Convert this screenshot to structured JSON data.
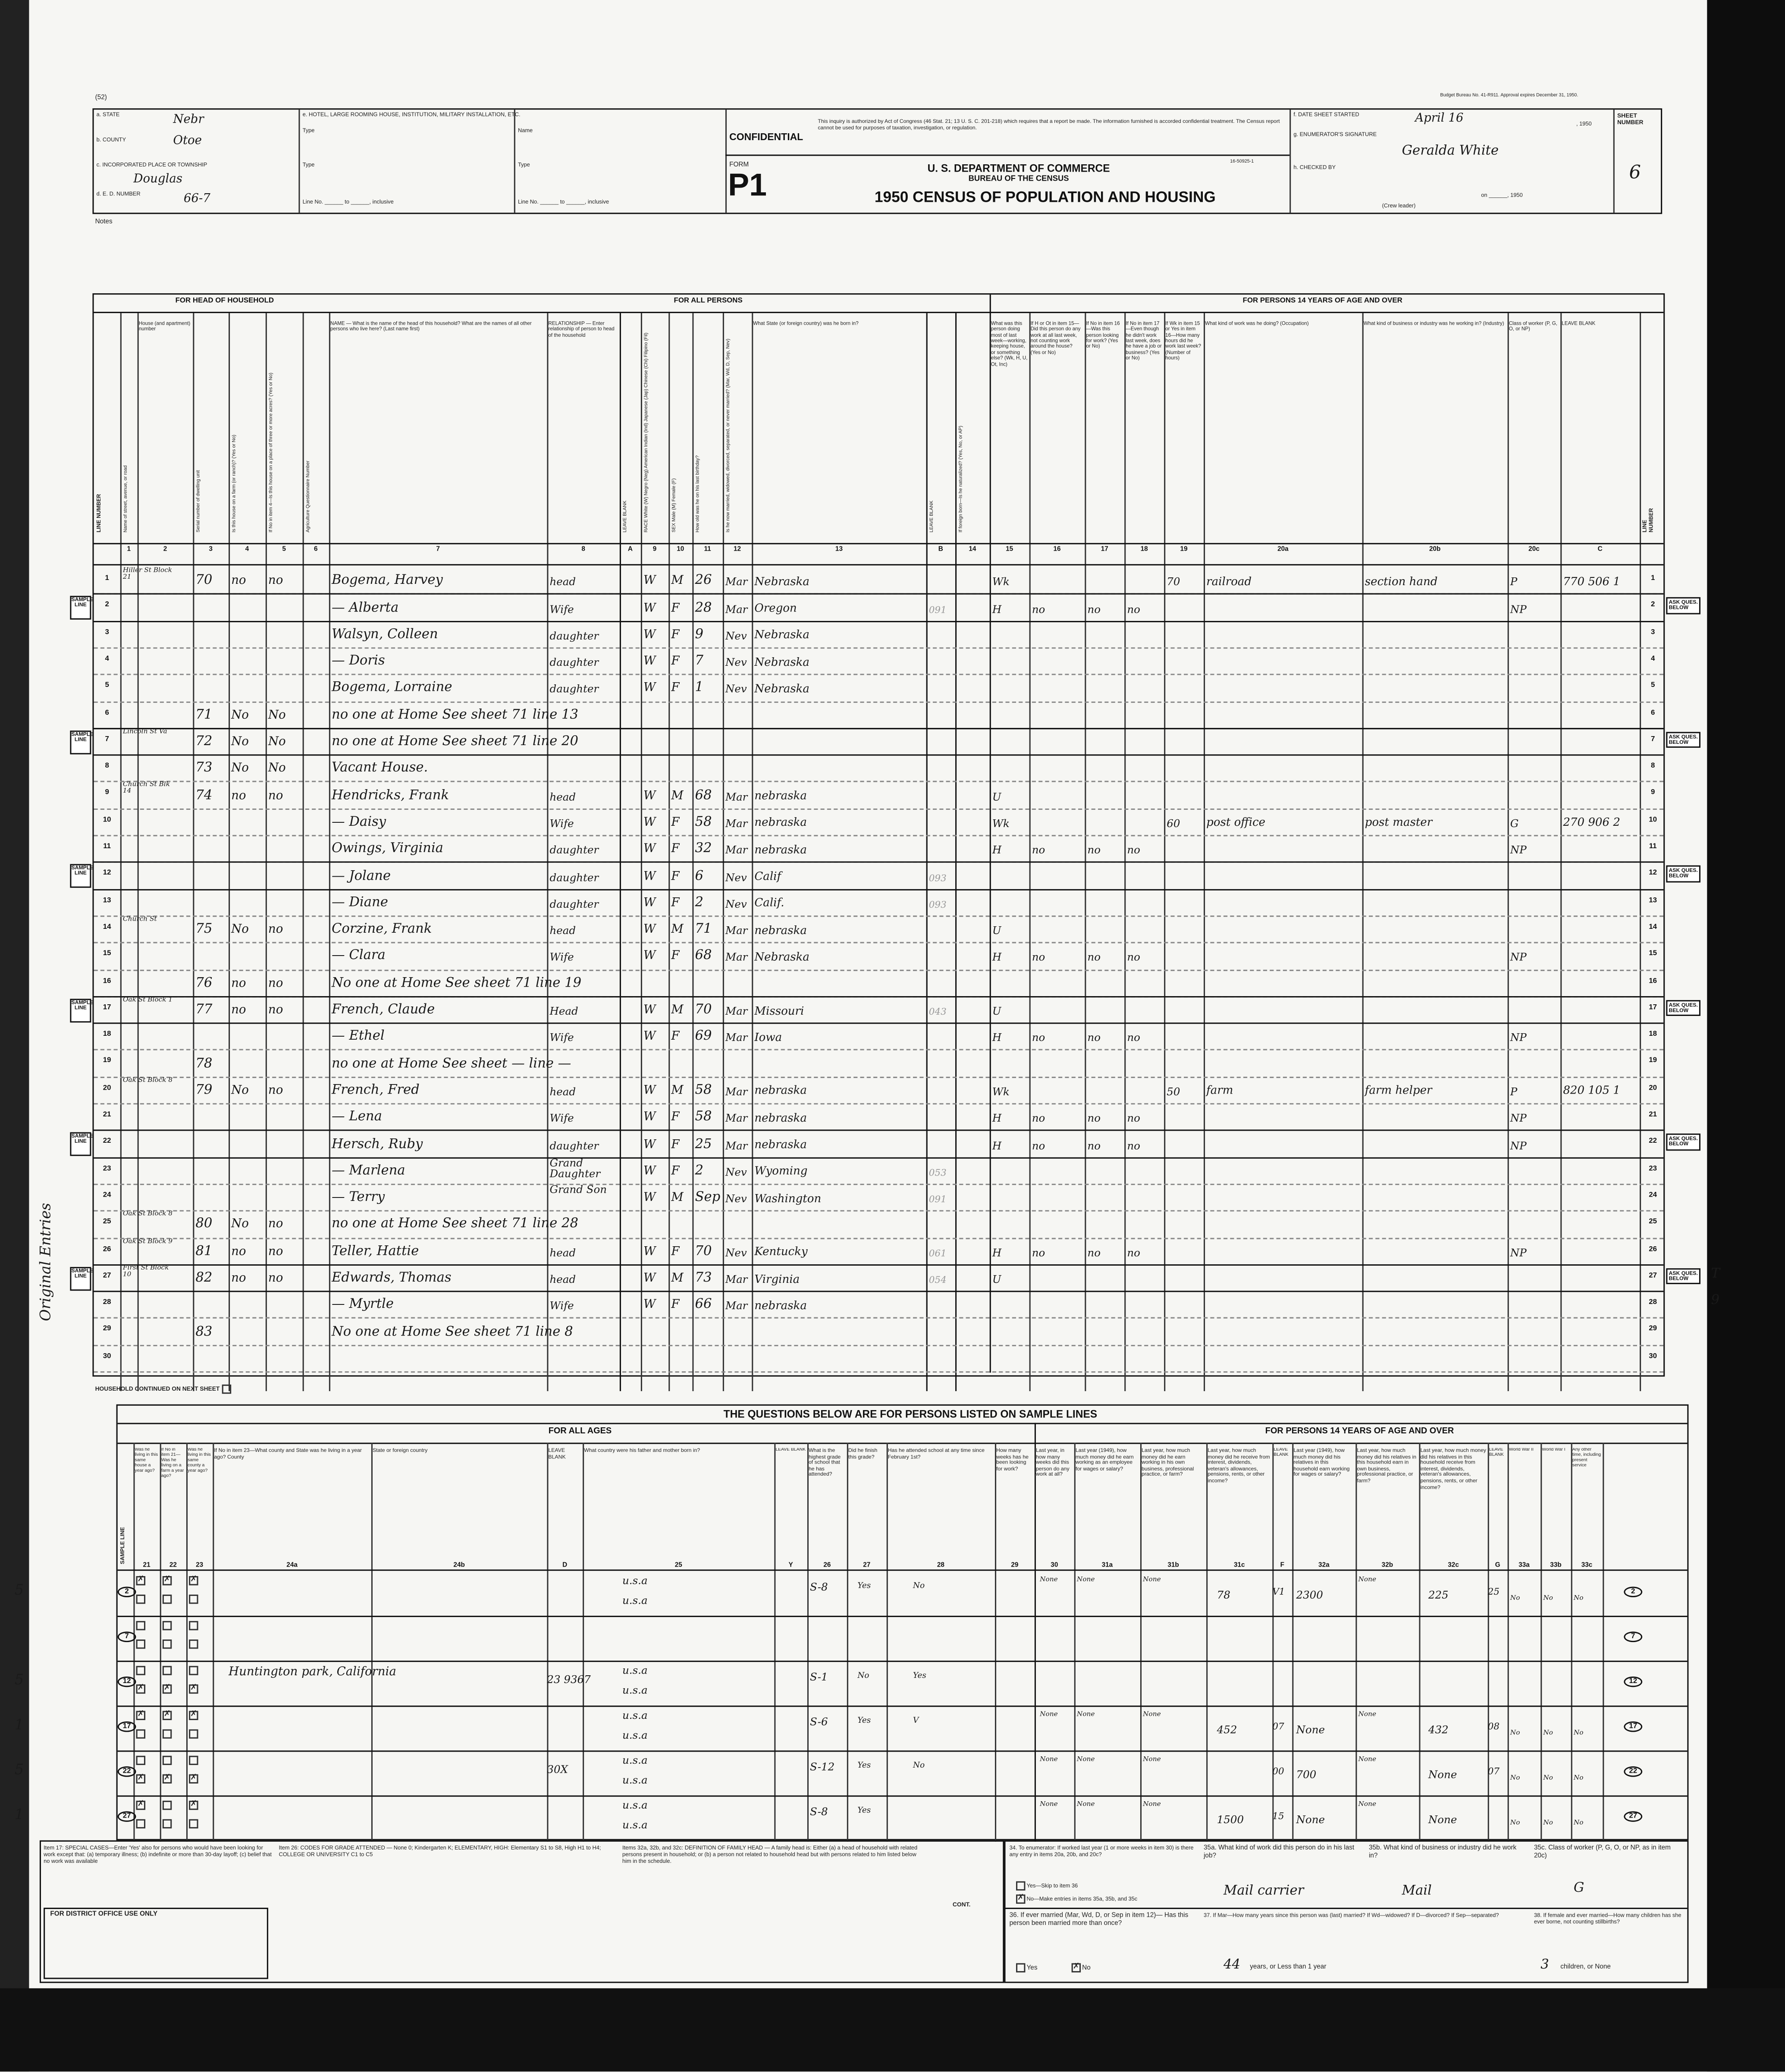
{
  "page_mark": "(52)",
  "budget_note": "Budget Bureau No. 41-R911. Approval expires December 31, 1950.",
  "header": {
    "state_label": "a. STATE",
    "state": "Nebr",
    "county_label": "b. COUNTY",
    "county": "Otoe",
    "place_label": "c. INCORPORATED PLACE OR TOWNSHIP",
    "place": "Douglas",
    "ed_label": "d. E. D. NUMBER",
    "ed": "66-7",
    "hotel_label": "e. HOTEL, LARGE ROOMING HOUSE, INSTITUTION, MILITARY INSTALLATION, ETC.",
    "type_label": "Type",
    "name_label": "Name",
    "line_no_label": "Line No. ______ to ______, inclusive",
    "confidential": "CONFIDENTIAL",
    "confidential_text": "This inquiry is authorized by Act of Congress (46 Stat. 21; 13 U. S. C. 201-218) which requires that a report be made. The information furnished is accorded confidential treatment. The Census report cannot be used for purposes of taxation, investigation, or regulation.",
    "form_label": "FORM",
    "form_no": "P1",
    "form_code": "16-50925-1",
    "dept": "U. S. DEPARTMENT OF COMMERCE",
    "bureau": "BUREAU OF THE CENSUS",
    "title": "1950 CENSUS OF POPULATION AND HOUSING",
    "date_label": "f. DATE SHEET STARTED",
    "date": "April 16",
    "date_year": ", 1950",
    "enumerator_label": "g. ENUMERATOR'S SIGNATURE",
    "enumerator": "Geralda White",
    "checked_label": "h. CHECKED BY",
    "checked_on": "on ______, 1950",
    "crew_leader": "(Crew leader)",
    "sheet_label": "SHEET NUMBER",
    "sheet": "6",
    "notes_label": "Notes"
  },
  "groups": {
    "head": "FOR HEAD OF HOUSEHOLD",
    "all": "FOR ALL PERSONS",
    "over14": "FOR PERSONS 14 YEARS OF AGE AND OVER",
    "line_number": "LINE NUMBER",
    "leave_blank": "LEAVE BLANK"
  },
  "columns": [
    {
      "num": "1",
      "text": "Name of street, avenue, or road"
    },
    {
      "num": "2",
      "text": "House (and apartment) number"
    },
    {
      "num": "3",
      "text": "Serial number of dwelling unit"
    },
    {
      "num": "4",
      "text": "Is this house on a farm (or ranch)? (Yes or No)"
    },
    {
      "num": "5",
      "text": "If No in item 4—Is this house on a place of three or more acres? (Yes or No)"
    },
    {
      "num": "6",
      "text": "Agriculture Questionnaire Number"
    },
    {
      "num": "7",
      "text": "NAME — What is the name of the head of this household? What are the names of all other persons who live here? (Last name first)"
    },
    {
      "num": "8",
      "text": "RELATIONSHIP — Enter relationship of person to head of the household"
    },
    {
      "num": "A",
      "text": "LEAVE BLANK"
    },
    {
      "num": "9",
      "text": "RACE White (W) Negro (Neg) American Indian (Ind) Japanese (Jap) Chinese (Chi) Filipino (Fil)"
    },
    {
      "num": "10",
      "text": "SEX Male (M) Female (F)"
    },
    {
      "num": "11",
      "text": "How old was he on his last birthday?"
    },
    {
      "num": "12",
      "text": "Is he now married, widowed, divorced, separated, or never married? (Mar, Wd, D, Sep, Nev)"
    },
    {
      "num": "13",
      "text": "What State (or foreign country) was he born in?"
    },
    {
      "num": "B",
      "text": "LEAVE BLANK"
    },
    {
      "num": "14",
      "text": "If foreign born—Is he naturalized? (Yes, No, or AP)"
    },
    {
      "num": "15",
      "text": "What was this person doing most of last week—working, keeping house, or something else? (Wk, H, U, Ot, Inc)"
    },
    {
      "num": "16",
      "text": "If H or Ot in item 15—Did this person do any work at all last week, not counting work around the house? (Yes or No)"
    },
    {
      "num": "17",
      "text": "If No in item 16—Was this person looking for work? (Yes or No)"
    },
    {
      "num": "18",
      "text": "If No in item 17—Even though he didn't work last week, does he have a job or business? (Yes or No)"
    },
    {
      "num": "19",
      "text": "If Wk in item 15 or Yes in item 16—How many hours did he work last week? (Number of hours)"
    },
    {
      "num": "20a",
      "text": "What kind of work was he doing? (Occupation)"
    },
    {
      "num": "20b",
      "text": "What kind of business or industry was he working in? (Industry)"
    },
    {
      "num": "20c",
      "text": "Class of worker (P, G, O, or NP)"
    },
    {
      "num": "C",
      "text": "LEAVE BLANK"
    }
  ],
  "rows": [
    {
      "ln": "1",
      "c1": "Hiller St Block 21",
      "c3": "70",
      "c4": "no",
      "c5": "no",
      "c7": "Bogema, Harvey",
      "c8": "head",
      "c9": "W",
      "c10": "M",
      "c11": "26",
      "c12": "Mar",
      "c13": "Nebraska",
      "c15": "Wk",
      "c19": "70",
      "c20a": "railroad",
      "c20b": "section hand",
      "c20c": "P",
      "cc": "770 506 1"
    },
    {
      "ln": "2",
      "sample": true,
      "c7": "— Alberta",
      "c8": "Wife",
      "c9": "W",
      "c10": "F",
      "c11": "28",
      "c12": "Mar",
      "c13": "Oregon",
      "cb": "091",
      "c15": "H",
      "c16": "no",
      "c17": "no",
      "c18": "no",
      "c20c": "NP"
    },
    {
      "ln": "3",
      "c7": "Walsyn, Colleen",
      "c8": "daughter",
      "c9": "W",
      "c10": "F",
      "c11": "9",
      "c12": "Nev",
      "c13": "Nebraska"
    },
    {
      "ln": "4",
      "c7": "— Doris",
      "c8": "daughter",
      "c9": "W",
      "c10": "F",
      "c11": "7",
      "c12": "Nev",
      "c13": "Nebraska"
    },
    {
      "ln": "5",
      "c7": "Bogema, Lorraine",
      "c8": "daughter",
      "c9": "W",
      "c10": "F",
      "c11": "1",
      "c12": "Nev",
      "c13": "Nebraska"
    },
    {
      "ln": "6",
      "c3": "71",
      "c4": "No",
      "c5": "No",
      "c7": "no one at Home See sheet 71 line 13"
    },
    {
      "ln": "7",
      "sample": true,
      "c1": "Lincoln St Va",
      "c3": "72",
      "c4": "No",
      "c5": "No",
      "c7": "no one at Home See sheet 71 line 20"
    },
    {
      "ln": "8",
      "c3": "73",
      "c4": "No",
      "c5": "No",
      "c7": "Vacant House."
    },
    {
      "ln": "9",
      "c1": "Church St Blk 14",
      "c3": "74",
      "c4": "no",
      "c5": "no",
      "c7": "Hendricks, Frank",
      "c8": "head",
      "c9": "W",
      "c10": "M",
      "c11": "68",
      "c12": "Mar",
      "c13": "nebraska",
      "c15": "U"
    },
    {
      "ln": "10",
      "c7": "— Daisy",
      "c8": "Wife",
      "c9": "W",
      "c10": "F",
      "c11": "58",
      "c12": "Mar",
      "c13": "nebraska",
      "c15": "Wk",
      "c19": "60",
      "c20a": "post office",
      "c20b": "post master",
      "c20c": "G",
      "cc": "270 906 2"
    },
    {
      "ln": "11",
      "c7": "Owings, Virginia",
      "c8": "daughter",
      "c9": "W",
      "c10": "F",
      "c11": "32",
      "c12": "Mar",
      "c13": "nebraska",
      "c15": "H",
      "c16": "no",
      "c17": "no",
      "c18": "no",
      "c20c": "NP"
    },
    {
      "ln": "12",
      "sample": true,
      "c7": "— Jolane",
      "c8": "daughter",
      "c9": "W",
      "c10": "F",
      "c11": "6",
      "c12": "Nev",
      "c13": "Calif",
      "cb": "093"
    },
    {
      "ln": "13",
      "c7": "— Diane",
      "c8": "daughter",
      "c9": "W",
      "c10": "F",
      "c11": "2",
      "c12": "Nev",
      "c13": "Calif.",
      "cb": "093"
    },
    {
      "ln": "14",
      "c1": "Church St",
      "c3": "75",
      "c4": "No",
      "c5": "no",
      "c7": "Corzine, Frank",
      "c8": "head",
      "c9": "W",
      "c10": "M",
      "c11": "71",
      "c12": "Mar",
      "c13": "nebraska",
      "c15": "U"
    },
    {
      "ln": "15",
      "c7": "— Clara",
      "c8": "Wife",
      "c9": "W",
      "c10": "F",
      "c11": "68",
      "c12": "Mar",
      "c13": "Nebraska",
      "c15": "H",
      "c16": "no",
      "c17": "no",
      "c18": "no",
      "c20c": "NP"
    },
    {
      "ln": "16",
      "c3": "76",
      "c4": "no",
      "c5": "no",
      "c7": "No one at Home See sheet 71 line 19"
    },
    {
      "ln": "17",
      "sample": true,
      "c1": "Oak St Block 1",
      "c3": "77",
      "c4": "no",
      "c5": "no",
      "c7": "French, Claude",
      "c8": "Head",
      "c9": "W",
      "c10": "M",
      "c11": "70",
      "c12": "Mar",
      "c13": "Missouri",
      "cb": "043",
      "c15": "U"
    },
    {
      "ln": "18",
      "c7": "— Ethel",
      "c8": "Wife",
      "c9": "W",
      "c10": "F",
      "c11": "69",
      "c12": "Mar",
      "c13": "Iowa",
      "c15": "H",
      "c16": "no",
      "c17": "no",
      "c18": "no",
      "c20c": "NP"
    },
    {
      "ln": "19",
      "c3": "78",
      "c7": "no one at Home See sheet — line —"
    },
    {
      "ln": "20",
      "c1": "Oak St Block 8",
      "c3": "79",
      "c4": "No",
      "c5": "no",
      "c7": "French, Fred",
      "c8": "head",
      "c9": "W",
      "c10": "M",
      "c11": "58",
      "c12": "Mar",
      "c13": "nebraska",
      "c15": "Wk",
      "c19": "50",
      "c20a": "farm",
      "c20b": "farm helper",
      "c20c": "P",
      "cc": "820 105 1"
    },
    {
      "ln": "21",
      "c7": "— Lena",
      "c8": "Wife",
      "c9": "W",
      "c10": "F",
      "c11": "58",
      "c12": "Mar",
      "c13": "nebraska",
      "c15": "H",
      "c16": "no",
      "c17": "no",
      "c18": "no",
      "c20c": "NP"
    },
    {
      "ln": "22",
      "sample": true,
      "c7": "Hersch, Ruby",
      "c8": "daughter",
      "c9": "W",
      "c10": "F",
      "c11": "25",
      "c12": "Mar",
      "c13": "nebraska",
      "c15": "H",
      "c16": "no",
      "c17": "no",
      "c18": "no",
      "c20c": "NP"
    },
    {
      "ln": "23",
      "c7": "— Marlena",
      "c8": "Grand Daughter",
      "c9": "W",
      "c10": "F",
      "c11": "2",
      "c12": "Nev",
      "c13": "Wyoming",
      "cb": "053"
    },
    {
      "ln": "24",
      "c7": "— Terry",
      "c8": "Grand Son",
      "c9": "W",
      "c10": "M",
      "c11": "Sep",
      "c12": "Nev",
      "c13": "Washington",
      "cb": "091"
    },
    {
      "ln": "25",
      "c1": "Oak St Block 8",
      "c3": "80",
      "c4": "No",
      "c5": "no",
      "c7": "no one at Home See sheet 71 line 28"
    },
    {
      "ln": "26",
      "c1": "Oak St Block 9",
      "c3": "81",
      "c4": "no",
      "c5": "no",
      "c7": "Teller, Hattie",
      "c8": "head",
      "c9": "W",
      "c10": "F",
      "c11": "70",
      "c12": "Nev",
      "c13": "Kentucky",
      "cb": "061",
      "c15": "H",
      "c16": "no",
      "c17": "no",
      "c18": "no",
      "c20c": "NP"
    },
    {
      "ln": "27",
      "sample": true,
      "c1": "First St Block 10",
      "c3": "82",
      "c4": "no",
      "c5": "no",
      "c7": "Edwards, Thomas",
      "c8": "head",
      "c9": "W",
      "c10": "M",
      "c11": "73",
      "c12": "Mar",
      "c13": "Virginia",
      "cb": "054",
      "c15": "U",
      "cr": "T"
    },
    {
      "ln": "28",
      "c7": "— Myrtle",
      "c8": "Wife",
      "c9": "W",
      "c10": "F",
      "c11": "66",
      "c12": "Mar",
      "c13": "nebraska",
      "cr": "9"
    },
    {
      "ln": "29",
      "c3": "83",
      "c7": "No one at Home See sheet 71 line 8"
    },
    {
      "ln": "30"
    }
  ],
  "sample_line_label": "SAMPLE LINE",
  "ask_label": "ASK QUES. BELOW",
  "household_continued": "HOUSEHOLD CONTINUED ON NEXT SHEET",
  "side_note": "Original Entries",
  "sample": {
    "title": "THE QUESTIONS BELOW ARE FOR PERSONS LISTED ON SAMPLE LINES",
    "all_ages": "FOR ALL AGES",
    "over14": "FOR PERSONS 14 YEARS OF AGE AND OVER",
    "columns": [
      {
        "num": "21",
        "text": "Was he living in this same house a year ago?"
      },
      {
        "num": "22",
        "text": "If No in item 21—Was he living on a farm a year ago?"
      },
      {
        "num": "23",
        "text": "Was he living in this same county a year ago?"
      },
      {
        "num": "24a",
        "text": "If No in item 23—What county and State was he living in a year ago? County"
      },
      {
        "num": "24b",
        "text": "State or foreign country"
      },
      {
        "num": "D",
        "text": "LEAVE BLANK"
      },
      {
        "num": "25",
        "text": "What country were his father and mother born in?"
      },
      {
        "num": "Y",
        "text": "LEAVE BLANK"
      },
      {
        "num": "26",
        "text": "What is the highest grade of school that he has attended?"
      },
      {
        "num": "27",
        "text": "Did he finish this grade?"
      },
      {
        "num": "28",
        "text": "Has he attended school at any time since February 1st?"
      },
      {
        "num": "29",
        "text": "How many weeks has he been looking for work?"
      },
      {
        "num": "30",
        "text": "Last year, in how many weeks did this person do any work at all?"
      },
      {
        "num": "31a",
        "text": "Last year (1949), how much money did he earn working as an employee for wages or salary?"
      },
      {
        "num": "31b",
        "text": "Last year, how much money did he earn working in his own business, professional practice, or farm?"
      },
      {
        "num": "31c",
        "text": "Last year, how much money did he receive from interest, dividends, veteran's allowances, pensions, rents, or other income?"
      },
      {
        "num": "F",
        "text": "LEAVE BLANK"
      },
      {
        "num": "32a",
        "text": "Last year (1949), how much money did his relatives in this household earn working for wages or salary?"
      },
      {
        "num": "32b",
        "text": "Last year, how much money did his relatives in this household earn in own business, professional practice, or farm?"
      },
      {
        "num": "32c",
        "text": "Last year, how much money did his relatives in this household receive from interest, dividends, veteran's allowances, pensions, rents, or other income?"
      },
      {
        "num": "G",
        "text": "LEAVE BLANK"
      },
      {
        "num": "33a",
        "text": "World War II"
      },
      {
        "num": "33b",
        "text": "World War I"
      },
      {
        "num": "33c",
        "text": "Any other time, including present service"
      }
    ],
    "lines": [
      {
        "ln": "2",
        "margin": "5",
        "c21": "Yes",
        "c22": "Yes",
        "c23": "Yes",
        "father": "u.s.a",
        "mother": "u.s.a",
        "c26": "S-8",
        "c27": "Yes",
        "c28": "No",
        "c30": "None",
        "c31a": "None",
        "c31b": "None",
        "c31c": "78",
        "f": "V1",
        "c32a": "2300",
        "c32b": "None",
        "c32c": "225",
        "g": "25",
        "c33a": "No",
        "c33b": "No",
        "c33c": "No"
      },
      {
        "ln": "7",
        "margin": "",
        "c21": "",
        "c22": "",
        "c23": ""
      },
      {
        "ln": "12",
        "margin": "5",
        "c21": "No",
        "c22": "No",
        "c23": "No",
        "c24a": "Huntington park, California",
        "d": "23 9367",
        "father": "u.s.a",
        "mother": "u.s.a",
        "c26": "S-1",
        "c27": "No",
        "c28": "Yes"
      },
      {
        "ln": "17",
        "margin": "1",
        "c21": "Yes",
        "c22": "Yes",
        "c23": "Yes",
        "father": "u.s.a",
        "mother": "u.s.a",
        "c26": "S-6",
        "c27": "Yes",
        "c28": "V",
        "c30": "None",
        "c31a": "None",
        "c31b": "None",
        "c31c": "452",
        "f": "07",
        "c32a": "None",
        "c32b": "None",
        "c32c": "432",
        "g": "08",
        "c33a": "No",
        "c33b": "No",
        "c33c": "No"
      },
      {
        "ln": "22",
        "margin": "5",
        "c21": "No",
        "c22": "No",
        "c23": "No",
        "d": "30X",
        "father": "u.s.a",
        "mother": "u.s.a",
        "c26": "S-12",
        "c27": "Yes",
        "c28": "No",
        "c30": "None",
        "c31a": "None",
        "c31b": "None",
        "f": "00",
        "c32a": "700",
        "c32b": "None",
        "c32c": "None",
        "g": "07",
        "c33a": "No",
        "c33b": "No",
        "c33c": "No"
      },
      {
        "ln": "27",
        "margin": "1",
        "c21": "Yes",
        "c22": "",
        "c23": "Yes",
        "father": "u.s.a",
        "mother": "u.s.a",
        "c26": "S-8",
        "c27": "Yes",
        "c30": "None",
        "c31a": "None",
        "c31b": "None",
        "c31c": "1500",
        "f": "15",
        "c32a": "None",
        "c32b": "None",
        "c32c": "None",
        "c33a": "No",
        "c33b": "No",
        "c33c": "No"
      }
    ],
    "footer": {
      "special_cases": "Item 17: SPECIAL CASES—Enter 'Yes' also for persons who would have been looking for work except that: (a) temporary illness; (b) indefinite or more than 30-day layoff; (c) belief that no work was available",
      "grade_codes": "Item 26: CODES FOR GRADE ATTENDED — None 0; Kindergarten K; ELEMENTARY, HIGH: Elementary S1 to S8, High H1 to H4; COLLEGE OR UNIVERSITY C1 to C5",
      "family_head": "Items 32a, 32b, and 32c: DEFINITION OF FAMILY HEAD — A family head is: Either (a) a head of household with related persons present in household; or (b) a person not related to household head but with persons related to him listed below him in the schedule.",
      "district_office": "FOR DISTRICT OFFICE USE ONLY",
      "cont": "CONT.",
      "q34": "34. To enumerator: If worked last year (1 or more weeks in item 30) is there any entry in items 20a, 20b, and 20c?",
      "q34_yes": "Yes—Skip to item 36",
      "q34_no": "No—Make entries in items 35a, 35b, and 35c",
      "q35a": "35a. What kind of work did this person do in his last job?",
      "a35a": "Mail carrier",
      "q35b": "35b. What kind of business or industry did he work in?",
      "a35b": "Mail",
      "q35c": "35c. Class of worker (P, G, O, or NP, as in item 20c)",
      "a35c": "G",
      "q36": "36. If ever married (Mar, Wd, D, or Sep in item 12)— Has this person been married more than once?",
      "q36_yes": "Yes",
      "q36_no": "No",
      "q37": "37. If Mar—How many years since this person was (last) married? If Wd—widowed? If D—divorced? If Sep—separated?",
      "a37": "44",
      "q37_suffix": "years, or   Less than 1 year",
      "q38": "38. If female and ever married—How many children has she ever borne, not counting stillbirths?",
      "a38": "3",
      "q38_suffix": "children, or   None"
    }
  }
}
